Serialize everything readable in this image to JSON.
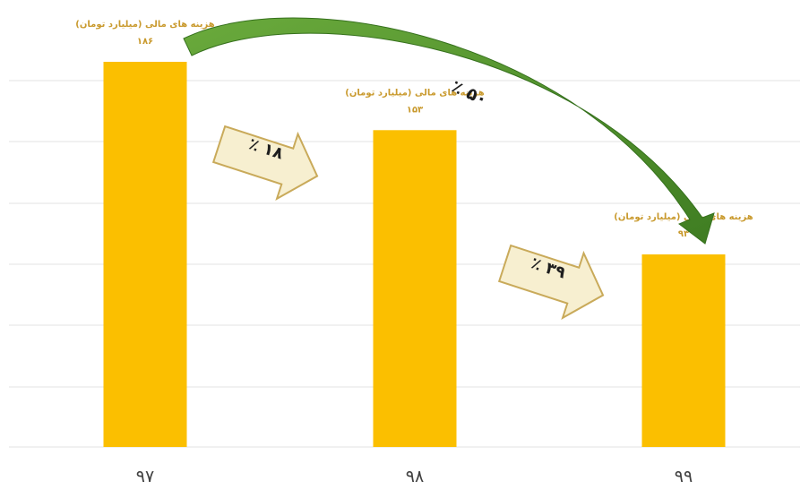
{
  "chart_data": {
    "type": "bar",
    "categories": [
      "۹۷",
      "۹۸",
      "۹۹"
    ],
    "series": [
      {
        "name": "هزینه های مالی (میلیارد تومان)",
        "values": [
          186,
          153,
          93
        ],
        "value_labels": [
          "۱۸۶",
          "۱۵۳",
          "۹۳"
        ]
      }
    ],
    "data_label_text": "هزینه های مالی (میلیارد تومان)",
    "ylim": [
      0,
      186
    ],
    "grid": true,
    "bar_color": "#fbbf00",
    "annotations": {
      "change_97_98": "٪ ۱۸",
      "change_98_99": "٪ ۳۹",
      "change_97_99": "٪ ۵۰"
    },
    "colors": {
      "label": "#c99a2e",
      "arrow_fill": "#f7efd0",
      "arrow_stroke": "#c9aa5a",
      "curve": "#4e8f2e"
    },
    "title": "",
    "xlabel": "",
    "ylabel": ""
  }
}
